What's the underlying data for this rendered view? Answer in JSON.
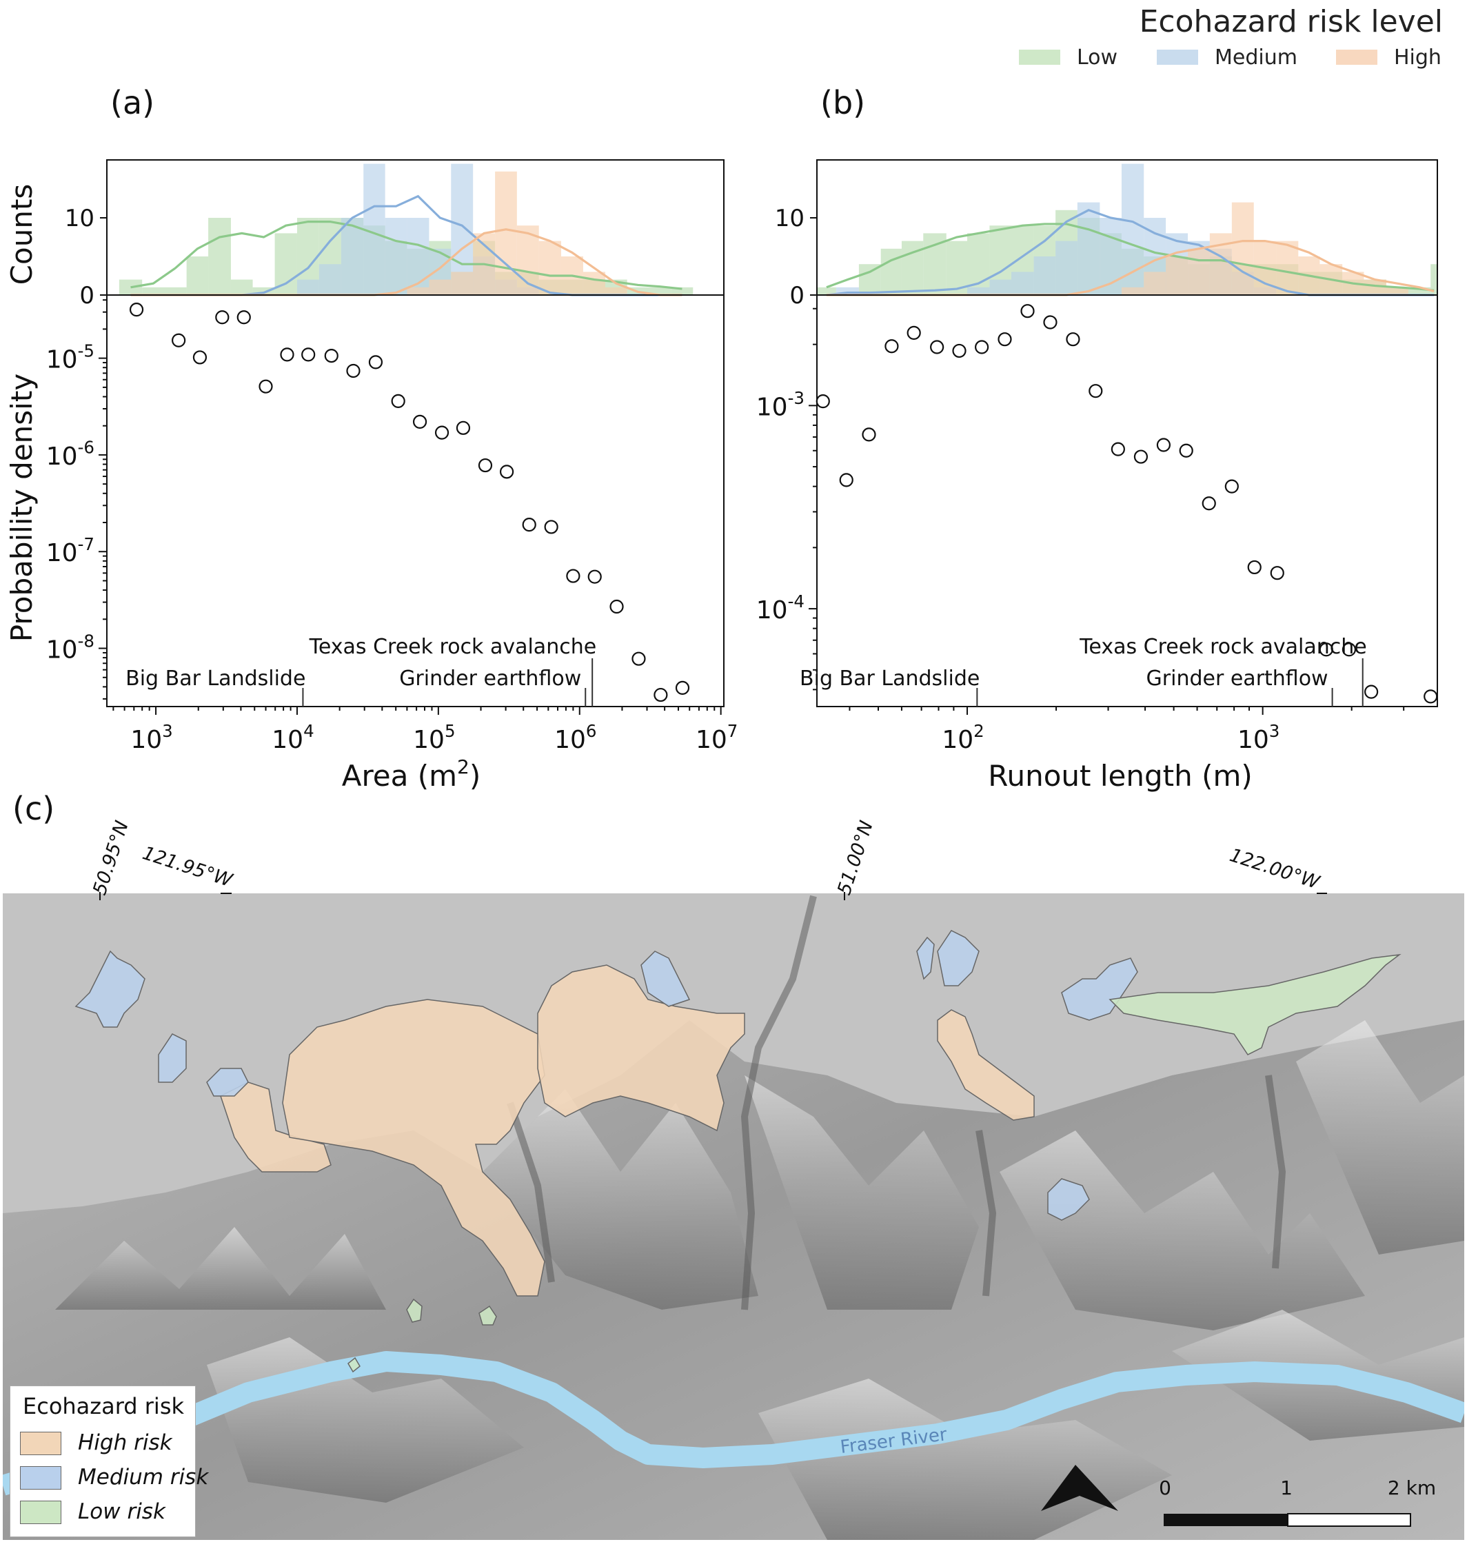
{
  "legend": {
    "title": "Ecohazard risk level",
    "items": [
      {
        "label": "Low",
        "color": "#cfe8c8"
      },
      {
        "label": "Medium",
        "color": "#c9dcee"
      },
      {
        "label": "High",
        "color": "#f8d8bf"
      }
    ]
  },
  "panel_labels": {
    "a": "(a)",
    "b": "(b)",
    "c": "(c)"
  },
  "chart_data": [
    {
      "id": "a",
      "type": "scatter",
      "xlabel_base": "Area (m",
      "xlabel_sup": "2",
      "xlabel_end": ")",
      "ylabel": "Probability density",
      "hist_ylabel": "Counts",
      "xscale": "log",
      "yscale": "log",
      "xlim": [
        450,
        10500000
      ],
      "ylim": [
        2.5e-09,
        4.5e-05
      ],
      "x_ticks": [
        {
          "value": 1000,
          "base": "10",
          "exp": "3"
        },
        {
          "value": 10000,
          "base": "10",
          "exp": "4"
        },
        {
          "value": 100000,
          "base": "10",
          "exp": "5"
        },
        {
          "value": 1000000,
          "base": "10",
          "exp": "6"
        },
        {
          "value": 10000000,
          "base": "10",
          "exp": "7"
        }
      ],
      "y_ticks": [
        {
          "value": 1e-08,
          "base": "10",
          "exp": "-8"
        },
        {
          "value": 1e-07,
          "base": "10",
          "exp": "-7"
        },
        {
          "value": 1e-06,
          "base": "10",
          "exp": "-6"
        },
        {
          "value": 1e-05,
          "base": "10",
          "exp": "-5"
        }
      ],
      "hist_yticks": [
        0,
        10
      ],
      "hist_ylim": [
        0,
        17.5
      ],
      "points": [
        {
          "x": 730,
          "y": 3.18e-05
        },
        {
          "x": 1450,
          "y": 1.53e-05
        },
        {
          "x": 2050,
          "y": 1.02e-05
        },
        {
          "x": 2950,
          "y": 2.65e-05
        },
        {
          "x": 4200,
          "y": 2.65e-05
        },
        {
          "x": 6000,
          "y": 5.1e-06
        },
        {
          "x": 8500,
          "y": 1.09e-05
        },
        {
          "x": 12000,
          "y": 1.09e-05
        },
        {
          "x": 17500,
          "y": 1.06e-05
        },
        {
          "x": 25000,
          "y": 7.4e-06
        },
        {
          "x": 36000,
          "y": 9.1e-06
        },
        {
          "x": 52000,
          "y": 3.6e-06
        },
        {
          "x": 74000,
          "y": 2.2e-06
        },
        {
          "x": 106000,
          "y": 1.7e-06
        },
        {
          "x": 150000,
          "y": 1.9e-06
        },
        {
          "x": 215000,
          "y": 7.8e-07
        },
        {
          "x": 305000,
          "y": 6.7e-07
        },
        {
          "x": 440000,
          "y": 1.9e-07
        },
        {
          "x": 630000,
          "y": 1.8e-07
        },
        {
          "x": 900000,
          "y": 5.6e-08
        },
        {
          "x": 1280000,
          "y": 5.5e-08
        },
        {
          "x": 1830000,
          "y": 2.7e-08
        },
        {
          "x": 2620000,
          "y": 7.8e-09
        },
        {
          "x": 3750000,
          "y": 3.3e-09
        },
        {
          "x": 5350000,
          "y": 3.9e-09
        }
      ],
      "hist_bins": [
        550,
        800,
        1150,
        1650,
        2350,
        3400,
        4850,
        6950,
        10000,
        14300,
        20500,
        29500,
        42000,
        60000,
        86000,
        123000,
        176000,
        252000,
        360000,
        515000,
        740000,
        1060000,
        1520000,
        2170000,
        3100000,
        4450000,
        6350000
      ],
      "series": [
        {
          "name": "Low",
          "color": "#b8dcb0",
          "line": "#8cc98a",
          "counts": [
            2,
            1,
            1,
            5,
            10,
            2,
            1,
            8,
            10,
            10,
            10,
            9,
            7,
            6,
            7,
            3,
            7,
            3,
            3,
            2,
            2,
            2,
            2,
            1,
            1,
            1
          ],
          "kde": [
            1,
            1.5,
            3.5,
            6,
            7.5,
            8,
            7.5,
            9,
            9.5,
            9.5,
            9,
            8,
            7,
            6.5,
            5.5,
            4,
            4,
            3.5,
            3,
            2.5,
            2.5,
            2,
            1.7,
            1.3,
            1.1,
            0.8
          ]
        },
        {
          "name": "Medium",
          "color": "#b7d1ea",
          "line": "#86aedb",
          "counts": [
            0,
            0,
            0,
            0,
            0,
            0,
            0,
            0,
            2,
            4,
            10,
            17,
            10,
            10,
            6,
            17,
            5,
            2,
            1,
            0,
            0,
            0,
            0,
            0,
            0,
            0
          ],
          "kde": [
            0,
            0,
            0,
            0,
            0,
            0,
            0.3,
            1.5,
            3.5,
            7,
            10,
            11.5,
            11.5,
            12.8,
            10,
            9,
            6.5,
            4,
            1.5,
            0.3,
            0,
            0,
            0,
            0,
            0,
            0
          ]
        },
        {
          "name": "High",
          "color": "#f7cfae",
          "line": "#f3bd93",
          "counts": [
            0,
            0,
            0,
            0,
            0,
            0,
            0,
            0,
            0,
            0,
            0,
            0,
            0,
            1,
            2,
            3,
            8,
            16,
            9,
            7,
            5,
            3,
            1,
            0,
            0,
            0
          ],
          "kde": [
            0,
            0,
            0,
            0,
            0,
            0,
            0,
            0,
            0,
            0,
            0,
            0,
            0.3,
            1.5,
            3.5,
            6,
            8,
            8.5,
            8,
            7,
            5.5,
            3.5,
            1.5,
            0.4,
            0,
            0
          ]
        }
      ],
      "annotations": [
        {
          "label": "Big Bar Landslide",
          "x": 11000,
          "row": "lower"
        },
        {
          "label": "Grinder earthflow",
          "x": 1100000,
          "row": "lower"
        },
        {
          "label": "Texas Creek rock avalanche",
          "x": 1230000,
          "row": "upper"
        }
      ]
    },
    {
      "id": "b",
      "type": "scatter",
      "xlabel": "Runout length (m)",
      "xscale": "log",
      "yscale": "log",
      "xlim": [
        31,
        3900
      ],
      "ylim": [
        3.3e-05,
        0.0035
      ],
      "x_ticks": [
        {
          "value": 100,
          "base": "10",
          "exp": "2"
        },
        {
          "value": 1000,
          "base": "10",
          "exp": "3"
        }
      ],
      "y_ticks": [
        {
          "value": 0.0001,
          "base": "10",
          "exp": "-4"
        },
        {
          "value": 0.001,
          "base": "10",
          "exp": "-3"
        }
      ],
      "hist_yticks": [
        0,
        10
      ],
      "hist_ylim": [
        0,
        17.5
      ],
      "points": [
        {
          "x": 32.5,
          "y": 0.00105
        },
        {
          "x": 39,
          "y": 0.00043
        },
        {
          "x": 46.5,
          "y": 0.00072
        },
        {
          "x": 55.5,
          "y": 0.00196
        },
        {
          "x": 66,
          "y": 0.00228
        },
        {
          "x": 79,
          "y": 0.00194
        },
        {
          "x": 94,
          "y": 0.00186
        },
        {
          "x": 112,
          "y": 0.00194
        },
        {
          "x": 134,
          "y": 0.00212
        },
        {
          "x": 160,
          "y": 0.00292
        },
        {
          "x": 191,
          "y": 0.00257
        },
        {
          "x": 228,
          "y": 0.00212
        },
        {
          "x": 272,
          "y": 0.00118
        },
        {
          "x": 324,
          "y": 0.00061
        },
        {
          "x": 387,
          "y": 0.00056
        },
        {
          "x": 462,
          "y": 0.00064
        },
        {
          "x": 551,
          "y": 0.0006
        },
        {
          "x": 658,
          "y": 0.00033
        },
        {
          "x": 786,
          "y": 0.0004
        },
        {
          "x": 938,
          "y": 0.00016
        },
        {
          "x": 1120,
          "y": 0.00015
        },
        {
          "x": 1640,
          "y": 6.3e-05
        },
        {
          "x": 1960,
          "y": 6.3e-05
        },
        {
          "x": 2330,
          "y": 3.9e-05
        },
        {
          "x": 3700,
          "y": 3.7e-05
        }
      ],
      "hist_bins": [
        31,
        36,
        43,
        51,
        60,
        71,
        85,
        100,
        119,
        141,
        168,
        199,
        236,
        281,
        333,
        396,
        470,
        558,
        662,
        786,
        933,
        1110,
        1320,
        1560,
        1860,
        2200,
        2620,
        3110,
        3700,
        3900
      ],
      "series": [
        {
          "name": "Low",
          "color": "#b8dcb0",
          "line": "#8cc98a",
          "counts": [
            1,
            0,
            4,
            6,
            7,
            8,
            7,
            8,
            9,
            9,
            9,
            11,
            10,
            8,
            6,
            5,
            5,
            4,
            5,
            4,
            4,
            4,
            3,
            3,
            2,
            2,
            1,
            1,
            4
          ],
          "kde": [
            1,
            2,
            3,
            4.5,
            5.5,
            6.5,
            7.5,
            8,
            8.5,
            9,
            9.2,
            9.2,
            8.5,
            7.5,
            6.5,
            5.5,
            5,
            4.5,
            4.5,
            4,
            3.5,
            3,
            2.5,
            2,
            1.5,
            1.2,
            1,
            0.8,
            0.6
          ]
        },
        {
          "name": "Medium",
          "color": "#b7d1ea",
          "line": "#86aedb",
          "counts": [
            0,
            1,
            0,
            0,
            0,
            0,
            0,
            1,
            2,
            3,
            5,
            7,
            12,
            10,
            17,
            10,
            8,
            7,
            6,
            3,
            1,
            0,
            0,
            0,
            0,
            0,
            0,
            0,
            0
          ],
          "kde": [
            0,
            0.3,
            0.3,
            0.4,
            0.5,
            0.6,
            0.8,
            1.5,
            3,
            5,
            7,
            9.5,
            11,
            10,
            9.5,
            8,
            7,
            6.5,
            5,
            3,
            1.5,
            0.5,
            0,
            0,
            0,
            0,
            0,
            0,
            0
          ]
        },
        {
          "name": "High",
          "color": "#f7cfae",
          "line": "#f3bd93",
          "counts": [
            0,
            0,
            0,
            0,
            0,
            0,
            0,
            0,
            0,
            0,
            0,
            0,
            0,
            0,
            1,
            3,
            5,
            6,
            8,
            12,
            7,
            7,
            5,
            4,
            3,
            2,
            1,
            0,
            0
          ],
          "kde": [
            0,
            0,
            0,
            0,
            0,
            0,
            0,
            0,
            0,
            0,
            0,
            0,
            0.5,
            1.5,
            3,
            4.5,
            5.5,
            6,
            6.5,
            7,
            7,
            6.5,
            5.5,
            4,
            3,
            2,
            1.5,
            1,
            0.5
          ]
        }
      ],
      "annotations": [
        {
          "label": "Big Bar Landslide",
          "x": 108,
          "row": "lower"
        },
        {
          "label": "Grinder earthflow",
          "x": 1720,
          "row": "lower"
        },
        {
          "label": "Texas Creek rock avalanche",
          "x": 2180,
          "row": "upper"
        }
      ]
    }
  ],
  "map": {
    "coordinate_labels": [
      "50.95°N",
      "121.95°W",
      "51.00°N",
      "122.00°W"
    ],
    "river_label": "Fraser River",
    "legend_title": "Ecohazard risk",
    "legend_items": [
      {
        "label": "High risk",
        "color": "#f2d6b8"
      },
      {
        "label": "Medium risk",
        "color": "#b9d0ec"
      },
      {
        "label": "Low risk",
        "color": "#cde7c4"
      }
    ],
    "scale_labels": [
      "0",
      "1",
      "2 km"
    ],
    "river_color": "#a8d8f0"
  }
}
